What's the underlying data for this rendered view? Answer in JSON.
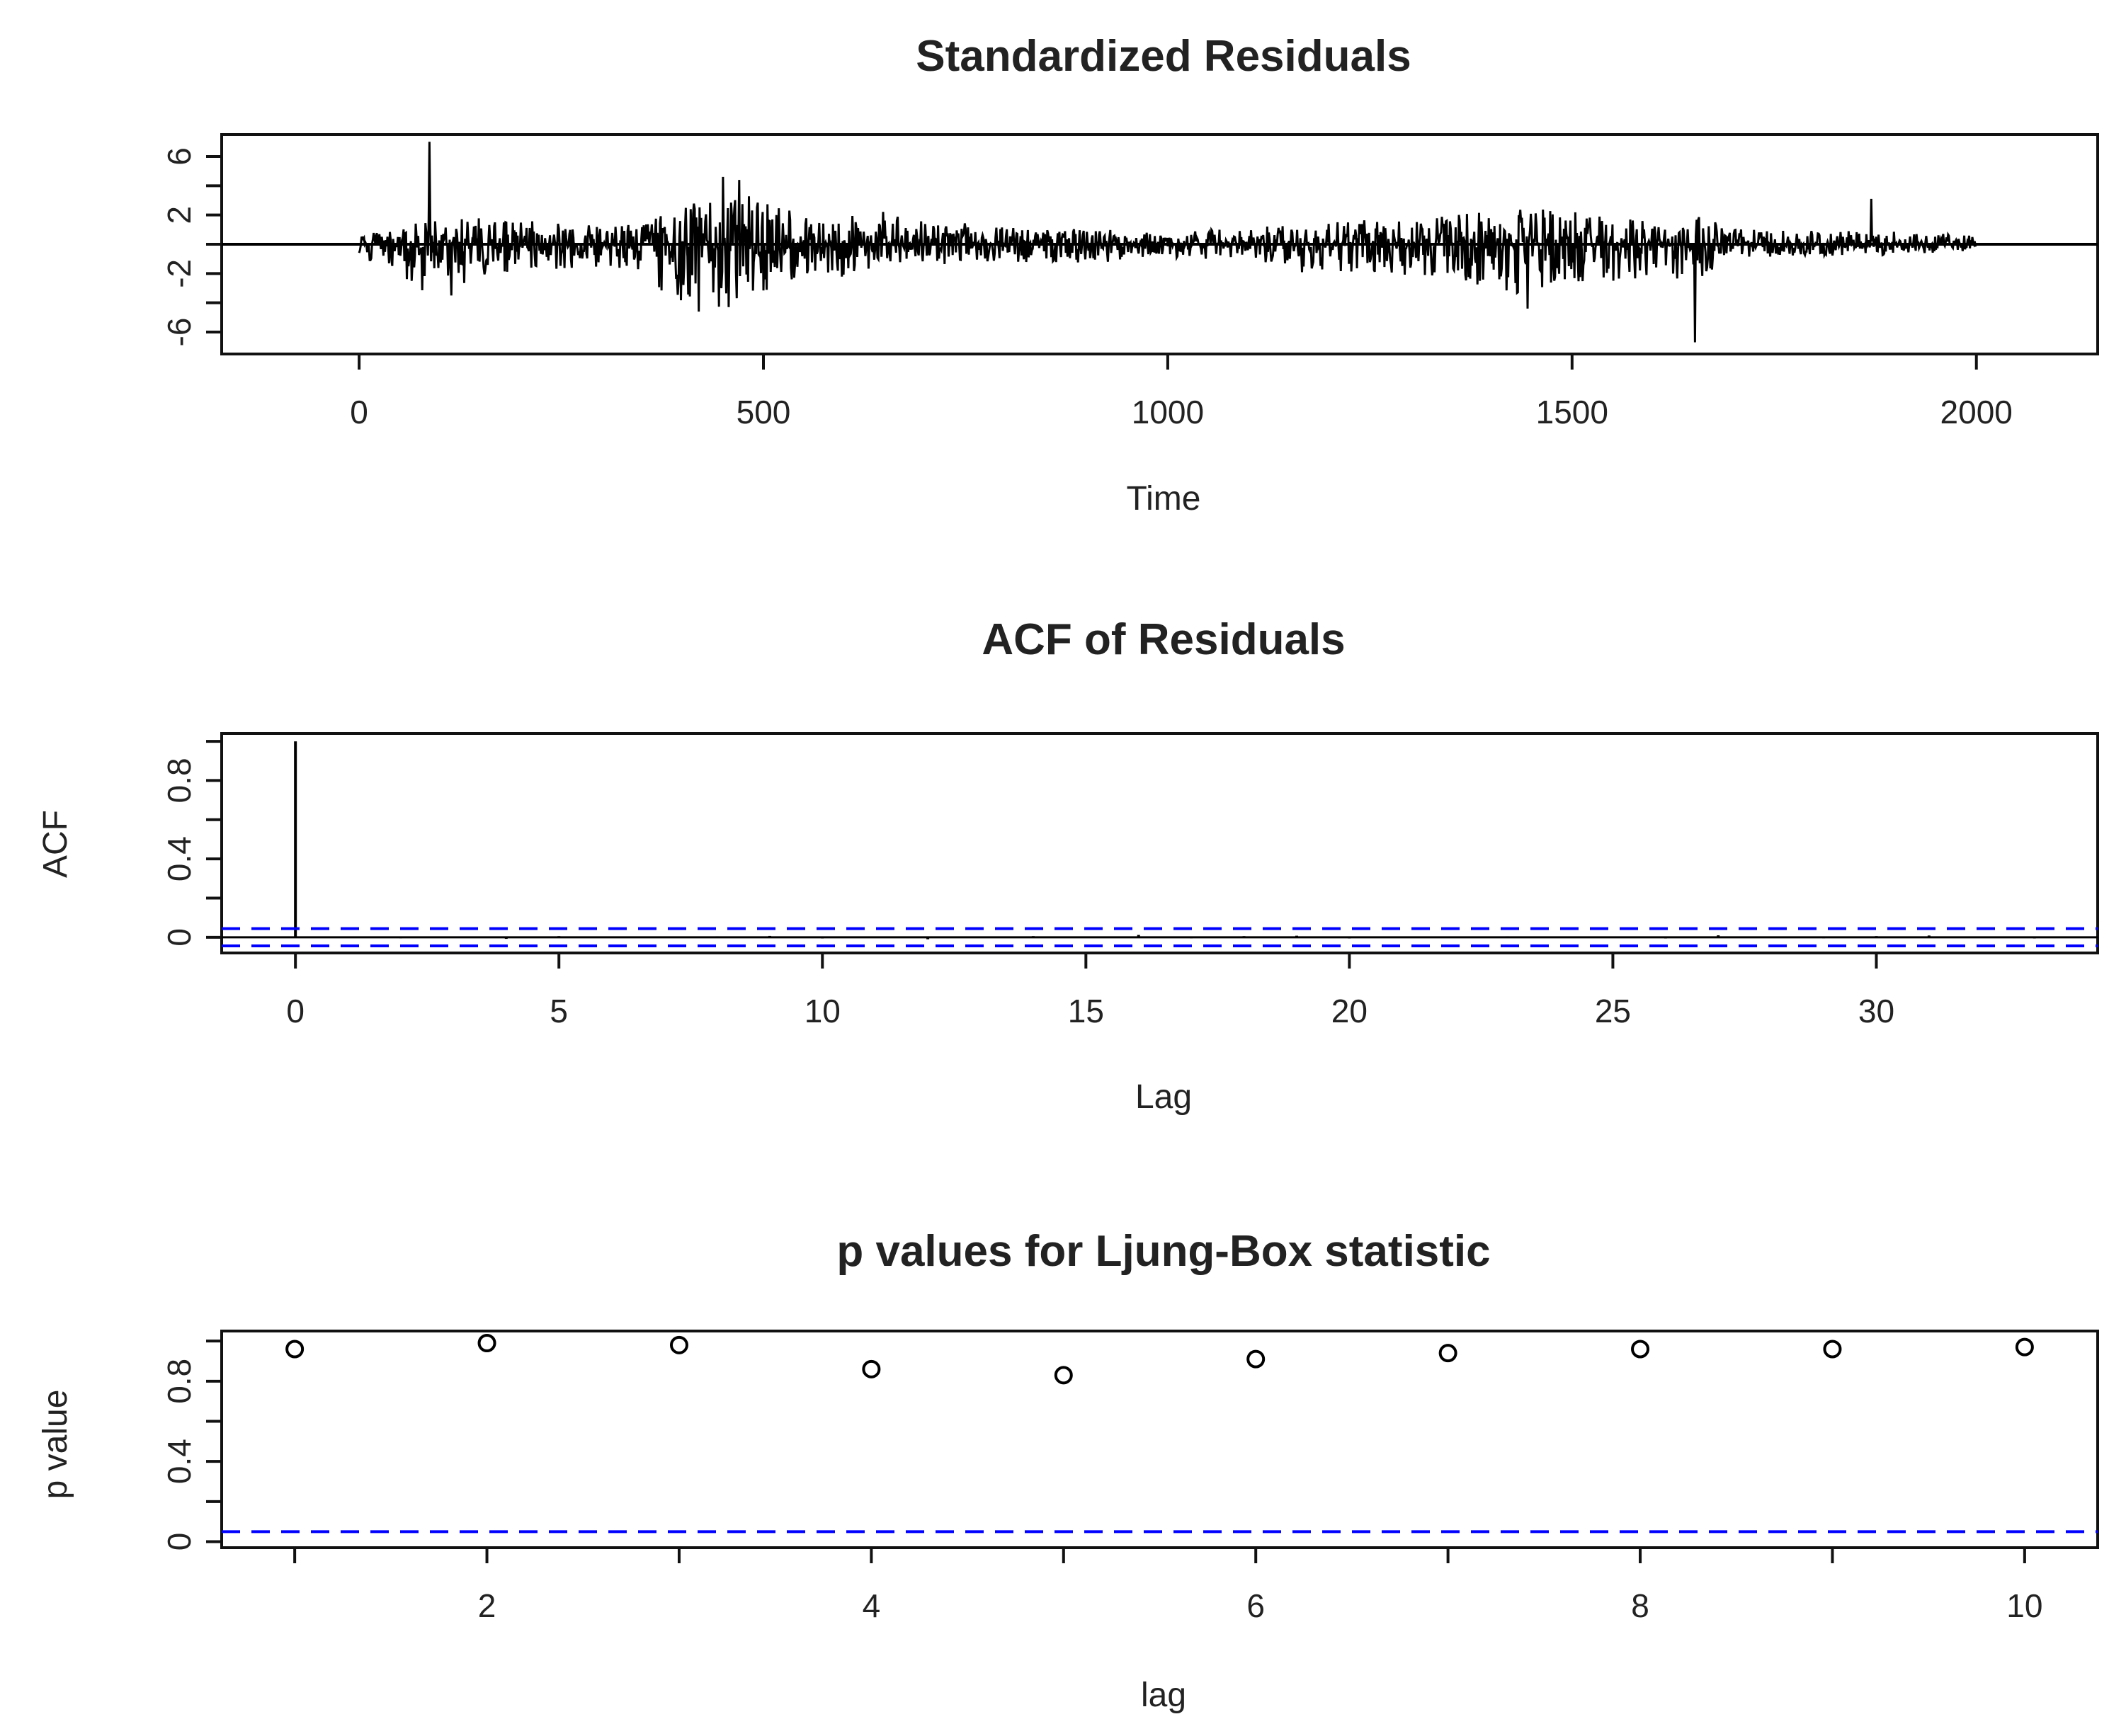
{
  "chart_data": [
    {
      "type": "line",
      "title": "Standardized Residuals",
      "xlabel": "Time",
      "ylabel": "",
      "xlim": [
        -170,
        2150
      ],
      "ylim": [
        -7.5,
        7.5
      ],
      "xticks": [
        0,
        500,
        1000,
        1500,
        2000
      ],
      "yticks": [
        -6,
        -2,
        2,
        6
      ],
      "ytick_minor": [
        -4,
        0,
        4
      ],
      "reference_line": 0,
      "n_points": 2000,
      "envelope": [
        {
          "x": 0,
          "hi": 0.4,
          "lo": -0.6
        },
        {
          "x": 50,
          "hi": 1.5,
          "lo": -2.5
        },
        {
          "x": 100,
          "hi": 1.7,
          "lo": -3.8
        },
        {
          "x": 150,
          "hi": 1.8,
          "lo": -2.8
        },
        {
          "x": 200,
          "hi": 1.6,
          "lo": -1.5
        },
        {
          "x": 250,
          "hi": 1.5,
          "lo": -1.9
        },
        {
          "x": 300,
          "hi": 1.2,
          "lo": -1.5
        },
        {
          "x": 350,
          "hi": 1.6,
          "lo": -2.2
        },
        {
          "x": 400,
          "hi": 2.6,
          "lo": -4.2
        },
        {
          "x": 450,
          "hi": 3.6,
          "lo": -4.6
        },
        {
          "x": 500,
          "hi": 3.2,
          "lo": -3.2
        },
        {
          "x": 550,
          "hi": 2.0,
          "lo": -2.6
        },
        {
          "x": 600,
          "hi": 2.0,
          "lo": -2.2
        },
        {
          "x": 650,
          "hi": 2.4,
          "lo": -1.8
        },
        {
          "x": 700,
          "hi": 1.6,
          "lo": -1.4
        },
        {
          "x": 800,
          "hi": 1.3,
          "lo": -1.2
        },
        {
          "x": 900,
          "hi": 1.0,
          "lo": -1.3
        },
        {
          "x": 1000,
          "hi": 0.9,
          "lo": -0.9
        },
        {
          "x": 1100,
          "hi": 1.1,
          "lo": -1.1
        },
        {
          "x": 1200,
          "hi": 1.6,
          "lo": -2.4
        },
        {
          "x": 1300,
          "hi": 1.9,
          "lo": -2.1
        },
        {
          "x": 1400,
          "hi": 2.2,
          "lo": -2.9
        },
        {
          "x": 1450,
          "hi": 2.6,
          "lo": -3.6
        },
        {
          "x": 1500,
          "hi": 2.2,
          "lo": -2.6
        },
        {
          "x": 1550,
          "hi": 2.1,
          "lo": -2.7
        },
        {
          "x": 1600,
          "hi": 1.7,
          "lo": -2.2
        },
        {
          "x": 1650,
          "hi": 2.0,
          "lo": -2.6
        },
        {
          "x": 1700,
          "hi": 1.1,
          "lo": -0.9
        },
        {
          "x": 1800,
          "hi": 0.9,
          "lo": -0.8
        },
        {
          "x": 1900,
          "hi": 0.9,
          "lo": -0.8
        },
        {
          "x": 2000,
          "hi": 0.6,
          "lo": -0.4
        }
      ],
      "spikes": [
        {
          "x": 87,
          "y": 7.0
        },
        {
          "x": 450,
          "y": 4.6
        },
        {
          "x": 470,
          "y": 4.4
        },
        {
          "x": 1652,
          "y": -6.7
        },
        {
          "x": 1870,
          "y": 3.1
        },
        {
          "x": 1445,
          "y": -4.4
        },
        {
          "x": 420,
          "y": -4.6
        }
      ]
    },
    {
      "type": "bar",
      "title": "ACF of Residuals",
      "xlabel": "Lag",
      "ylabel": "ACF",
      "xlim": [
        -1.4,
        34.2
      ],
      "ylim": [
        -0.08,
        1.04
      ],
      "xticks": [
        0,
        5,
        10,
        15,
        20,
        25,
        30
      ],
      "yticks": [
        0.0,
        0.4,
        0.8
      ],
      "ytick_minor": [
        0.2,
        0.6,
        1.0
      ],
      "lags": [
        0,
        1,
        2,
        3,
        4,
        5,
        6,
        7,
        8,
        9,
        10,
        11,
        12,
        13,
        14,
        15,
        16,
        17,
        18,
        19,
        20,
        21,
        22,
        23,
        24,
        25,
        26,
        27,
        28,
        29,
        30,
        31,
        32,
        33
      ],
      "values": [
        1.0,
        0.003,
        -0.005,
        0.004,
        -0.008,
        0.006,
        0.002,
        -0.004,
        0.005,
        0.007,
        -0.006,
        0.003,
        -0.01,
        0.004,
        0.006,
        0.003,
        0.012,
        -0.005,
        0.006,
        0.008,
        -0.006,
        0.004,
        -0.004,
        0.005,
        0.003,
        -0.004,
        -0.006,
        0.01,
        0.004,
        -0.005,
        0.006,
        0.009,
        -0.004,
        -0.006
      ],
      "conf_bounds": [
        0.044,
        -0.044
      ],
      "conf_color": "#0000ff"
    },
    {
      "type": "scatter",
      "title": "p values for Ljung-Box statistic",
      "xlabel": "lag",
      "ylabel": "p value",
      "xlim": [
        0.62,
        10.38
      ],
      "ylim": [
        -0.03,
        1.05
      ],
      "xticks": [
        2,
        4,
        6,
        8,
        10
      ],
      "xtick_minor": [
        1,
        3,
        5,
        7,
        9
      ],
      "yticks": [
        0.0,
        0.4,
        0.8
      ],
      "ytick_minor": [
        0.2,
        0.6,
        1.0
      ],
      "x": [
        1,
        2,
        3,
        4,
        5,
        6,
        7,
        8,
        9,
        10
      ],
      "y": [
        0.96,
        0.99,
        0.98,
        0.86,
        0.83,
        0.91,
        0.94,
        0.96,
        0.96,
        0.97
      ],
      "threshold": 0.05,
      "threshold_color": "#0000ff"
    }
  ]
}
